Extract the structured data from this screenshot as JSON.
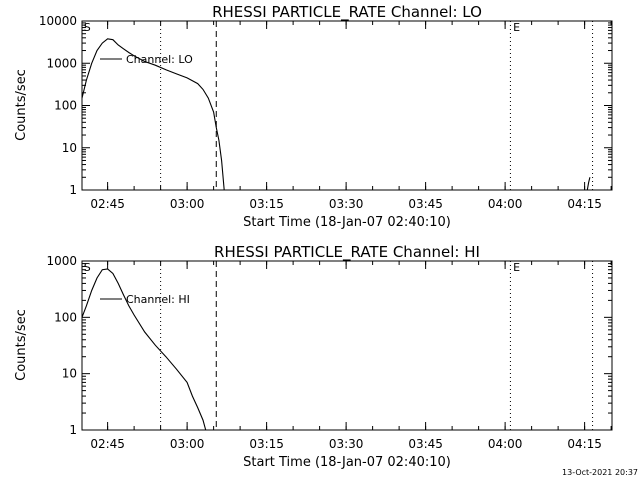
{
  "footer": {
    "timestamp": "13-Oct-2021 20:37"
  },
  "chart_data": [
    {
      "type": "line",
      "title": "RHESSI PARTICLE_RATE Channel: LO",
      "xlabel": "Start Time (18-Jan-07 02:40:10)",
      "ylabel": "Counts/sec",
      "y_scale": "log",
      "ylim": [
        1,
        10000
      ],
      "xlim": [
        "02:40:10",
        "04:20:10"
      ],
      "x_ticks": [
        "02:45",
        "03:00",
        "03:15",
        "03:30",
        "03:45",
        "04:00",
        "04:15"
      ],
      "y_ticks": [
        "1",
        "10",
        "100",
        "1000",
        "10000"
      ],
      "legend": {
        "position": "top-left",
        "entries": [
          "Channel: LO"
        ]
      },
      "markers": [
        {
          "label": "S",
          "time": "02:40:30"
        },
        {
          "label": "E",
          "time": "04:01:30"
        }
      ],
      "vlines": [
        {
          "time": "02:55:00",
          "style": "dotted"
        },
        {
          "time": "03:05:30",
          "style": "dashed"
        },
        {
          "time": "04:01:00",
          "style": "dotted"
        },
        {
          "time": "04:16:30",
          "style": "dotted"
        }
      ],
      "series": [
        {
          "name": "Channel: LO",
          "segments": [
            [
              [
                "02:40:10",
                150
              ],
              [
                "02:41:00",
                400
              ],
              [
                "02:42:00",
                1000
              ],
              [
                "02:43:00",
                2000
              ],
              [
                "02:44:00",
                3000
              ],
              [
                "02:45:00",
                3800
              ],
              [
                "02:46:00",
                3600
              ],
              [
                "02:47:00",
                2700
              ],
              [
                "02:48:00",
                2200
              ],
              [
                "02:49:00",
                1800
              ],
              [
                "02:50:00",
                1500
              ],
              [
                "02:52:00",
                1100
              ],
              [
                "02:54:00",
                900
              ],
              [
                "02:56:00",
                700
              ],
              [
                "02:58:00",
                560
              ],
              [
                "03:00:00",
                450
              ],
              [
                "03:02:00",
                330
              ],
              [
                "03:03:00",
                240
              ],
              [
                "03:04:00",
                150
              ],
              [
                "03:05:00",
                70
              ],
              [
                "03:05:30",
                30
              ],
              [
                "03:06:00",
                15
              ],
              [
                "03:06:30",
                5
              ],
              [
                "03:07:00",
                1
              ]
            ],
            [
              [
                "04:15:30",
                1
              ],
              [
                "04:15:45",
                1.5
              ],
              [
                "04:16:00",
                2
              ]
            ]
          ]
        }
      ]
    },
    {
      "type": "line",
      "title": "RHESSI PARTICLE_RATE Channel: HI",
      "xlabel": "Start Time (18-Jan-07 02:40:10)",
      "ylabel": "Counts/sec",
      "y_scale": "log",
      "ylim": [
        1,
        1000
      ],
      "xlim": [
        "02:40:10",
        "04:20:10"
      ],
      "x_ticks": [
        "02:45",
        "03:00",
        "03:15",
        "03:30",
        "03:45",
        "04:00",
        "04:15"
      ],
      "y_ticks": [
        "1",
        "10",
        "100",
        "1000"
      ],
      "legend": {
        "position": "top-left",
        "entries": [
          "Channel: HI"
        ]
      },
      "markers": [
        {
          "label": "S",
          "time": "02:40:30"
        },
        {
          "label": "E",
          "time": "04:01:30"
        }
      ],
      "vlines": [
        {
          "time": "02:55:00",
          "style": "dotted"
        },
        {
          "time": "03:05:30",
          "style": "dashed"
        },
        {
          "time": "04:01:00",
          "style": "dotted"
        },
        {
          "time": "04:16:30",
          "style": "dotted"
        }
      ],
      "series": [
        {
          "name": "Channel: HI",
          "segments": [
            [
              [
                "02:40:10",
                100
              ],
              [
                "02:41:00",
                160
              ],
              [
                "02:42:00",
                300
              ],
              [
                "02:43:00",
                500
              ],
              [
                "02:44:00",
                700
              ],
              [
                "02:45:00",
                720
              ],
              [
                "02:46:00",
                600
              ],
              [
                "02:47:00",
                400
              ],
              [
                "02:48:00",
                250
              ],
              [
                "02:49:00",
                160
              ],
              [
                "02:50:00",
                110
              ],
              [
                "02:52:00",
                55
              ],
              [
                "02:54:00",
                32
              ],
              [
                "02:56:00",
                20
              ],
              [
                "02:58:00",
                12
              ],
              [
                "03:00:00",
                7
              ],
              [
                "03:01:00",
                4
              ],
              [
                "03:02:00",
                2.5
              ],
              [
                "03:03:00",
                1.5
              ],
              [
                "03:03:30",
                1
              ]
            ]
          ]
        }
      ]
    }
  ]
}
